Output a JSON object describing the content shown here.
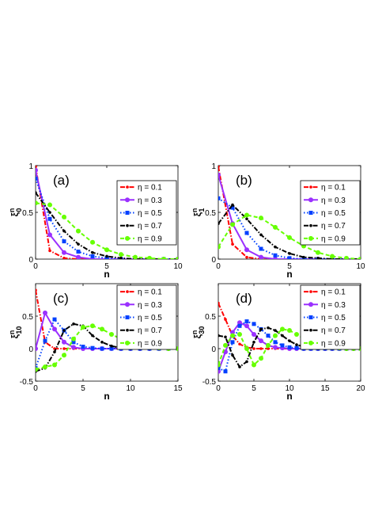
{
  "chart_data": [
    {
      "type": "line",
      "panel_label": "(a)",
      "xlabel": "n",
      "ylabel_base": "ξ",
      "ylabel_sup": "n",
      "ylabel_sub": "0",
      "xlim": [
        0,
        10
      ],
      "ylim": [
        0,
        1
      ],
      "xticks": [
        0,
        5,
        10
      ],
      "yticks": [
        0,
        0.5,
        1
      ],
      "xtick_labels": [
        "0",
        "5",
        "10"
      ],
      "ytick_labels": [
        "0",
        "0.5",
        "1"
      ],
      "legend_position": "right",
      "grid": false,
      "x": [
        0,
        1,
        2,
        3,
        4,
        5,
        6,
        7,
        8,
        9,
        10
      ],
      "series": [
        {
          "name": "η = 0.1",
          "color": "#ff0000",
          "style": "dashdot",
          "marker": "point",
          "values": [
            0.99,
            0.09,
            0.01,
            0.0,
            0.0,
            0.0,
            0.0,
            0.0,
            0.0,
            0.0,
            0.0
          ]
        },
        {
          "name": "η = 0.3",
          "color": "#9b30ff",
          "style": "solid",
          "marker": "circle",
          "values": [
            0.95,
            0.26,
            0.07,
            0.02,
            0.0,
            0.0,
            0.0,
            0.0,
            0.0,
            0.0,
            0.0
          ]
        },
        {
          "name": "η = 0.5",
          "color": "#0040ff",
          "style": "dotted",
          "marker": "square",
          "values": [
            0.86,
            0.43,
            0.19,
            0.08,
            0.03,
            0.01,
            0.0,
            0.0,
            0.0,
            0.0,
            0.0
          ]
        },
        {
          "name": "η = 0.7",
          "color": "#000000",
          "style": "dashdot",
          "marker": "point",
          "values": [
            0.71,
            0.5,
            0.3,
            0.16,
            0.07,
            0.03,
            0.01,
            0.0,
            0.0,
            0.0,
            0.0
          ]
        },
        {
          "name": "η = 0.9",
          "color": "#66ff00",
          "style": "dashed",
          "marker": "circle",
          "values": [
            0.6,
            0.58,
            0.45,
            0.3,
            0.18,
            0.1,
            0.05,
            0.02,
            0.01,
            0.0,
            0.0
          ]
        }
      ]
    },
    {
      "type": "line",
      "panel_label": "(b)",
      "xlabel": "n",
      "ylabel_base": "ξ",
      "ylabel_sup": "n",
      "ylabel_sub": "1",
      "xlim": [
        0,
        10
      ],
      "ylim": [
        0,
        1
      ],
      "xticks": [
        0,
        5,
        10
      ],
      "yticks": [
        0,
        0.5,
        1
      ],
      "xtick_labels": [
        "0",
        "5",
        "10"
      ],
      "ytick_labels": [
        "0",
        "0.5",
        "1"
      ],
      "legend_position": "right",
      "grid": false,
      "x": [
        0,
        1,
        2,
        3,
        4,
        5,
        6,
        7,
        8,
        9,
        10
      ],
      "series": [
        {
          "name": "η = 0.1",
          "color": "#ff0000",
          "style": "dashdot",
          "marker": "point",
          "values": [
            0.99,
            0.16,
            0.02,
            0.0,
            0.0,
            0.0,
            0.0,
            0.0,
            0.0,
            0.0,
            0.0
          ]
        },
        {
          "name": "η = 0.3",
          "color": "#9b30ff",
          "style": "solid",
          "marker": "circle",
          "values": [
            0.9,
            0.38,
            0.1,
            0.02,
            0.0,
            0.0,
            0.0,
            0.0,
            0.0,
            0.0,
            0.0
          ]
        },
        {
          "name": "η = 0.5",
          "color": "#0040ff",
          "style": "dotted",
          "marker": "square",
          "values": [
            0.65,
            0.55,
            0.28,
            0.11,
            0.04,
            0.01,
            0.0,
            0.0,
            0.0,
            0.0,
            0.0
          ]
        },
        {
          "name": "η = 0.7",
          "color": "#000000",
          "style": "dashdot",
          "marker": "point",
          "values": [
            0.38,
            0.58,
            0.43,
            0.26,
            0.13,
            0.06,
            0.02,
            0.01,
            0.0,
            0.0,
            0.0
          ]
        },
        {
          "name": "η = 0.9",
          "color": "#66ff00",
          "style": "dashed",
          "marker": "circle",
          "values": [
            0.13,
            0.37,
            0.47,
            0.44,
            0.34,
            0.23,
            0.14,
            0.07,
            0.03,
            0.01,
            0.0
          ]
        }
      ]
    },
    {
      "type": "line",
      "panel_label": "(c)",
      "xlabel": "n",
      "ylabel_base": "ξ",
      "ylabel_sup": "n",
      "ylabel_sub": "10",
      "xlim": [
        0,
        15
      ],
      "ylim": [
        -0.5,
        1
      ],
      "xticks": [
        0,
        5,
        10,
        15
      ],
      "yticks": [
        -0.5,
        0,
        0.5
      ],
      "xtick_labels": [
        "0",
        "5",
        "10",
        "15"
      ],
      "ytick_labels": [
        "-0.5",
        "0",
        "0.5"
      ],
      "legend_position": "top-right",
      "grid": false,
      "x": [
        0,
        1,
        2,
        3,
        4,
        5,
        6,
        7,
        8,
        9,
        10,
        11,
        12,
        13,
        14,
        15
      ],
      "series": [
        {
          "name": "η = 0.1",
          "color": "#ff0000",
          "style": "dashdot",
          "marker": "point",
          "values": [
            0.9,
            0.1,
            0.0,
            0.0,
            0.0,
            0.0,
            0.0,
            0.0,
            0.0,
            0.0,
            0.0,
            0.0,
            0.0,
            0.0,
            0.0,
            0.0
          ]
        },
        {
          "name": "η = 0.3",
          "color": "#9b30ff",
          "style": "solid",
          "marker": "circle",
          "values": [
            0.0,
            0.55,
            0.3,
            0.1,
            0.02,
            0.0,
            0.0,
            0.0,
            0.0,
            0.0,
            0.0,
            0.0,
            0.0,
            0.0,
            0.0,
            0.0
          ]
        },
        {
          "name": "η = 0.5",
          "color": "#0040ff",
          "style": "dotted",
          "marker": "square",
          "values": [
            -0.3,
            0.12,
            0.45,
            0.28,
            0.1,
            0.03,
            0.01,
            0.0,
            0.0,
            0.0,
            0.0,
            0.0,
            0.0,
            0.0,
            0.0,
            0.0
          ]
        },
        {
          "name": "η = 0.7",
          "color": "#000000",
          "style": "dashdot",
          "marker": "point",
          "values": [
            -0.35,
            -0.3,
            -0.05,
            0.28,
            0.38,
            0.35,
            0.2,
            0.1,
            0.04,
            0.01,
            0.0,
            0.0,
            0.0,
            0.0,
            0.0,
            0.0
          ]
        },
        {
          "name": "η = 0.9",
          "color": "#66ff00",
          "style": "dashed",
          "marker": "circle",
          "values": [
            -0.32,
            -0.28,
            -0.25,
            -0.1,
            0.15,
            0.33,
            0.35,
            0.3,
            0.22,
            0.15,
            0.08,
            0.04,
            0.02,
            0.01,
            0.0,
            0.0
          ]
        }
      ]
    },
    {
      "type": "line",
      "panel_label": "(d)",
      "xlabel": "n",
      "ylabel_base": "ξ",
      "ylabel_sup": "n",
      "ylabel_sub": "30",
      "xlim": [
        0,
        20
      ],
      "ylim": [
        -0.5,
        1
      ],
      "xticks": [
        0,
        5,
        10,
        15,
        20
      ],
      "yticks": [
        -0.5,
        0,
        0.5
      ],
      "xtick_labels": [
        "0",
        "5",
        "10",
        "15",
        "20"
      ],
      "ytick_labels": [
        "-0.5",
        "0",
        "0.5"
      ],
      "legend_position": "top-right",
      "grid": false,
      "x": [
        0,
        1,
        2,
        3,
        4,
        5,
        6,
        7,
        8,
        9,
        10,
        11,
        12,
        13,
        14,
        15,
        16,
        17,
        18,
        19,
        20
      ],
      "series": [
        {
          "name": "η = 0.1",
          "color": "#ff0000",
          "style": "dashdot",
          "marker": "point",
          "values": [
            0.7,
            0.45,
            0.2,
            0.07,
            0.02,
            0.0,
            0.0,
            0.0,
            0.0,
            0.0,
            0.0,
            0.0,
            0.0,
            0.0,
            0.0,
            0.0,
            0.0,
            0.0,
            0.0,
            0.0,
            0.0
          ]
        },
        {
          "name": "η = 0.3",
          "color": "#9b30ff",
          "style": "solid",
          "marker": "circle",
          "values": [
            -0.35,
            -0.05,
            0.25,
            0.4,
            0.35,
            0.22,
            0.12,
            0.05,
            0.02,
            0.01,
            0.0,
            0.0,
            0.0,
            0.0,
            0.0,
            0.0,
            0.0,
            0.0,
            0.0,
            0.0,
            0.0
          ]
        },
        {
          "name": "η = 0.5",
          "color": "#0040ff",
          "style": "dotted",
          "marker": "square",
          "values": [
            -0.3,
            -0.35,
            0.1,
            0.35,
            0.42,
            0.38,
            0.3,
            0.2,
            0.1,
            0.05,
            0.02,
            0.01,
            0.0,
            0.0,
            0.0,
            0.0,
            0.0,
            0.0,
            0.0,
            0.0,
            0.0
          ]
        },
        {
          "name": "η = 0.7",
          "color": "#000000",
          "style": "dashdot",
          "marker": "point",
          "values": [
            0.2,
            0.18,
            -0.1,
            -0.28,
            -0.2,
            0.1,
            0.3,
            0.32,
            0.28,
            0.2,
            0.12,
            0.06,
            0.03,
            0.01,
            0.0,
            0.0,
            0.0,
            0.0,
            0.0,
            0.0,
            0.0
          ]
        },
        {
          "name": "η = 0.9",
          "color": "#66ff00",
          "style": "dashed",
          "marker": "circle",
          "values": [
            -0.25,
            0.05,
            0.2,
            0.22,
            0.0,
            -0.25,
            -0.15,
            0.05,
            0.2,
            0.3,
            0.28,
            0.22,
            0.16,
            0.1,
            0.06,
            0.03,
            0.02,
            0.01,
            0.0,
            0.0,
            0.0
          ]
        }
      ]
    }
  ]
}
